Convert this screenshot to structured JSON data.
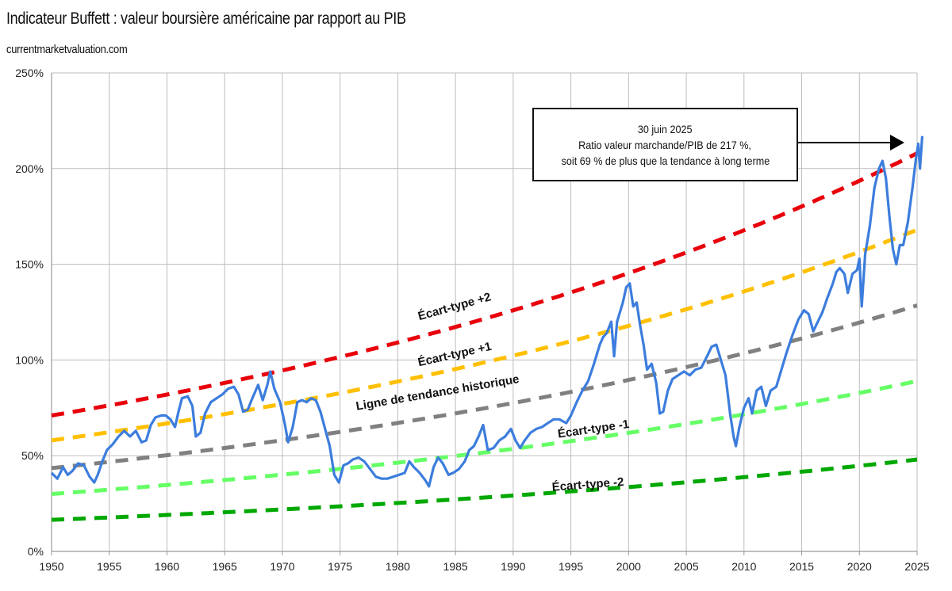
{
  "header": {
    "title": "Indicateur Buffett : valeur boursière américaine par rapport au PIB",
    "source": "currentmarketvaluation.com"
  },
  "annotation": {
    "line1": "30 juin 2025",
    "line2": "Ratio valeur marchande/PIB de 217 %,",
    "line3": "soit 69 % de plus que la tendance à long terme",
    "points_to": {
      "x": 2025.5,
      "y": 217
    }
  },
  "chart_data": {
    "type": "line",
    "title": "Indicateur Buffett : valeur boursière américaine par rapport au PIB",
    "subtitle": "currentmarketvaluation.com",
    "xlabel": "",
    "ylabel": "",
    "xlim": [
      1950,
      2025.5
    ],
    "ylim": [
      0,
      250
    ],
    "grid": true,
    "x_ticks": [
      "1950",
      "1955",
      "1960",
      "1965",
      "1970",
      "1975",
      "1980",
      "1985",
      "1990",
      "1995",
      "2000",
      "2005",
      "2010",
      "2015",
      "2020",
      "2025"
    ],
    "y_ticks": [
      "0%",
      "50%",
      "100%",
      "150%",
      "200%",
      "250%"
    ],
    "y_tick_values": [
      0,
      50,
      100,
      150,
      200,
      250
    ],
    "bands": [
      {
        "name": "Écart-type +2",
        "color": "#e8000b",
        "start": 71,
        "end": 208,
        "label_at": [
          1985,
          126
        ]
      },
      {
        "name": "Écart-type +1",
        "color": "#ffc000",
        "start": 58,
        "end": 168,
        "label_at": [
          1985,
          101
        ]
      },
      {
        "name": "Ligne de tendance historique",
        "color": "#808080",
        "start": 43.5,
        "end": 128.5,
        "label_at": [
          1983.5,
          81
        ]
      },
      {
        "name": "Écart-type -1",
        "color": "#66ff66",
        "start": 30,
        "end": 89,
        "label_at": [
          1997,
          62
        ]
      },
      {
        "name": "Écart-type -2",
        "color": "#00a800",
        "start": 16.5,
        "end": 48,
        "label_at": [
          1996.5,
          33
        ]
      }
    ],
    "series": [
      {
        "name": "Valeur marchande / PIB",
        "color": "#3c7ddd",
        "points": [
          [
            1950.0,
            41
          ],
          [
            1950.5,
            38
          ],
          [
            1951.0,
            44
          ],
          [
            1951.4,
            40
          ],
          [
            1951.8,
            42
          ],
          [
            1952.3,
            46
          ],
          [
            1952.8,
            45
          ],
          [
            1953.3,
            39
          ],
          [
            1953.7,
            36
          ],
          [
            1954.0,
            40
          ],
          [
            1954.4,
            47
          ],
          [
            1954.8,
            53
          ],
          [
            1955.3,
            56
          ],
          [
            1955.8,
            60
          ],
          [
            1956.3,
            63
          ],
          [
            1956.8,
            60
          ],
          [
            1957.3,
            63
          ],
          [
            1957.8,
            57
          ],
          [
            1958.2,
            58
          ],
          [
            1958.6,
            66
          ],
          [
            1959.0,
            70
          ],
          [
            1959.5,
            71
          ],
          [
            1959.9,
            71
          ],
          [
            1960.3,
            69
          ],
          [
            1960.7,
            65
          ],
          [
            1961.0,
            73
          ],
          [
            1961.3,
            80
          ],
          [
            1961.8,
            81
          ],
          [
            1962.2,
            76
          ],
          [
            1962.5,
            60
          ],
          [
            1962.9,
            62
          ],
          [
            1963.3,
            72
          ],
          [
            1963.8,
            78
          ],
          [
            1964.3,
            80
          ],
          [
            1964.8,
            82
          ],
          [
            1965.3,
            85
          ],
          [
            1965.8,
            86
          ],
          [
            1966.2,
            82
          ],
          [
            1966.6,
            73
          ],
          [
            1967.0,
            74
          ],
          [
            1967.4,
            80
          ],
          [
            1967.9,
            87
          ],
          [
            1968.3,
            79
          ],
          [
            1968.7,
            87
          ],
          [
            1968.95,
            94
          ],
          [
            1969.3,
            85
          ],
          [
            1969.8,
            78
          ],
          [
            1970.2,
            67
          ],
          [
            1970.5,
            57
          ],
          [
            1970.9,
            65
          ],
          [
            1971.3,
            78
          ],
          [
            1971.7,
            79
          ],
          [
            1972.1,
            78
          ],
          [
            1972.5,
            80
          ],
          [
            1972.9,
            79
          ],
          [
            1973.3,
            73
          ],
          [
            1973.7,
            64
          ],
          [
            1974.1,
            55
          ],
          [
            1974.5,
            40
          ],
          [
            1974.9,
            36
          ],
          [
            1975.3,
            45
          ],
          [
            1975.7,
            46
          ],
          [
            1976.1,
            48
          ],
          [
            1976.6,
            49
          ],
          [
            1977.1,
            47
          ],
          [
            1977.6,
            43
          ],
          [
            1978.1,
            39
          ],
          [
            1978.6,
            38
          ],
          [
            1979.1,
            38
          ],
          [
            1979.6,
            39
          ],
          [
            1980.1,
            40
          ],
          [
            1980.6,
            41
          ],
          [
            1981.0,
            47
          ],
          [
            1981.4,
            44
          ],
          [
            1981.9,
            41
          ],
          [
            1982.4,
            37
          ],
          [
            1982.7,
            34
          ],
          [
            1983.1,
            44
          ],
          [
            1983.5,
            49
          ],
          [
            1983.9,
            46
          ],
          [
            1984.4,
            40
          ],
          [
            1984.8,
            41
          ],
          [
            1985.3,
            43
          ],
          [
            1985.8,
            47
          ],
          [
            1986.2,
            53
          ],
          [
            1986.6,
            55
          ],
          [
            1987.0,
            60
          ],
          [
            1987.4,
            66
          ],
          [
            1987.8,
            53
          ],
          [
            1988.3,
            54
          ],
          [
            1988.8,
            58
          ],
          [
            1989.3,
            60
          ],
          [
            1989.8,
            64
          ],
          [
            1990.2,
            58
          ],
          [
            1990.6,
            54
          ],
          [
            1991.0,
            58
          ],
          [
            1991.5,
            62
          ],
          [
            1992.0,
            64
          ],
          [
            1992.5,
            65
          ],
          [
            1993.0,
            67
          ],
          [
            1993.5,
            69
          ],
          [
            1994.0,
            69
          ],
          [
            1994.6,
            67
          ],
          [
            1995.0,
            71
          ],
          [
            1995.5,
            78
          ],
          [
            1996.0,
            84
          ],
          [
            1996.5,
            89
          ],
          [
            1997.0,
            98
          ],
          [
            1997.5,
            108
          ],
          [
            1997.8,
            112
          ],
          [
            1998.1,
            114
          ],
          [
            1998.5,
            120
          ],
          [
            1998.75,
            102
          ],
          [
            1999.0,
            120
          ],
          [
            1999.5,
            130
          ],
          [
            1999.8,
            138
          ],
          [
            2000.1,
            140
          ],
          [
            2000.4,
            128
          ],
          [
            2000.7,
            130
          ],
          [
            2001.0,
            118
          ],
          [
            2001.3,
            108
          ],
          [
            2001.6,
            95
          ],
          [
            2002.0,
            98
          ],
          [
            2002.4,
            88
          ],
          [
            2002.7,
            72
          ],
          [
            2003.0,
            73
          ],
          [
            2003.4,
            84
          ],
          [
            2003.8,
            90
          ],
          [
            2004.3,
            92
          ],
          [
            2004.8,
            94
          ],
          [
            2005.3,
            92
          ],
          [
            2005.8,
            95
          ],
          [
            2006.3,
            96
          ],
          [
            2006.8,
            102
          ],
          [
            2007.2,
            107
          ],
          [
            2007.6,
            108
          ],
          [
            2008.0,
            100
          ],
          [
            2008.4,
            92
          ],
          [
            2008.8,
            72
          ],
          [
            2009.1,
            60
          ],
          [
            2009.3,
            55
          ],
          [
            2009.6,
            65
          ],
          [
            2010.0,
            75
          ],
          [
            2010.4,
            80
          ],
          [
            2010.7,
            72
          ],
          [
            2011.1,
            84
          ],
          [
            2011.5,
            86
          ],
          [
            2011.9,
            76
          ],
          [
            2012.3,
            84
          ],
          [
            2012.8,
            86
          ],
          [
            2013.2,
            94
          ],
          [
            2013.7,
            104
          ],
          [
            2014.2,
            113
          ],
          [
            2014.7,
            121
          ],
          [
            2015.2,
            126
          ],
          [
            2015.6,
            124
          ],
          [
            2016.0,
            115
          ],
          [
            2016.4,
            120
          ],
          [
            2016.8,
            125
          ],
          [
            2017.2,
            132
          ],
          [
            2017.7,
            140
          ],
          [
            2018.0,
            146
          ],
          [
            2018.3,
            148
          ],
          [
            2018.7,
            145
          ],
          [
            2019.0,
            135
          ],
          [
            2019.4,
            145
          ],
          [
            2019.8,
            147
          ],
          [
            2020.0,
            153
          ],
          [
            2020.2,
            128
          ],
          [
            2020.5,
            155
          ],
          [
            2020.9,
            170
          ],
          [
            2021.3,
            190
          ],
          [
            2021.7,
            200
          ],
          [
            2022.0,
            204
          ],
          [
            2022.3,
            195
          ],
          [
            2022.6,
            175
          ],
          [
            2022.9,
            158
          ],
          [
            2023.2,
            150
          ],
          [
            2023.5,
            160
          ],
          [
            2023.8,
            160
          ],
          [
            2024.2,
            172
          ],
          [
            2024.6,
            190
          ],
          [
            2024.9,
            205
          ],
          [
            2025.1,
            213
          ],
          [
            2025.25,
            200
          ],
          [
            2025.45,
            217
          ]
        ]
      }
    ]
  }
}
